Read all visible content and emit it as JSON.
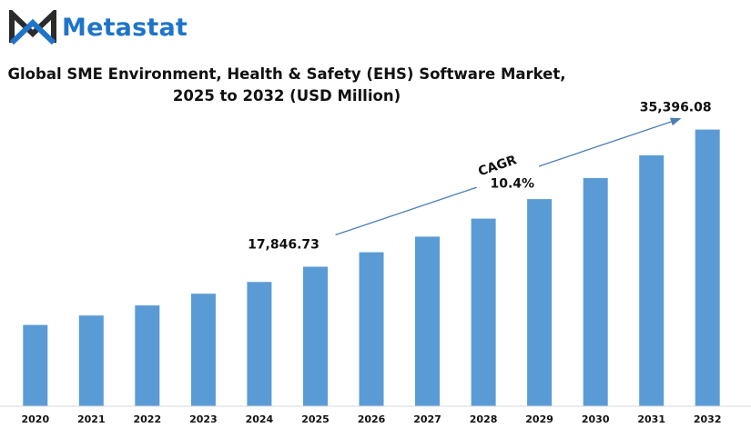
{
  "brand": {
    "name": "Metastat",
    "color": "#1f74c9"
  },
  "chart_data": {
    "type": "bar",
    "title_line1": "Global SME Environment, Health & Safety (EHS) Software Market,",
    "title_line2": "2025 to 2032 (USD Million)",
    "categories": [
      "2020",
      "2021",
      "2022",
      "2023",
      "2024",
      "2025",
      "2026",
      "2027",
      "2028",
      "2029",
      "2030",
      "2031",
      "2032"
    ],
    "values": [
      10400,
      11600,
      12900,
      14400,
      15900,
      17846.73,
      19700,
      21700,
      24000,
      26500,
      29200,
      32100,
      35396.08
    ],
    "bar_color": "#5b9bd5",
    "data_labels": [
      {
        "index": 5,
        "text": "17,846.73"
      },
      {
        "index": 12,
        "text": "35,396.08"
      }
    ],
    "annotation": {
      "label": "CAGR",
      "value": "10.4%",
      "from_index": 5,
      "to_index": 12
    },
    "ylim": [
      0,
      40000
    ],
    "xlabel": "",
    "ylabel": "",
    "grid": false,
    "legend": "none"
  }
}
